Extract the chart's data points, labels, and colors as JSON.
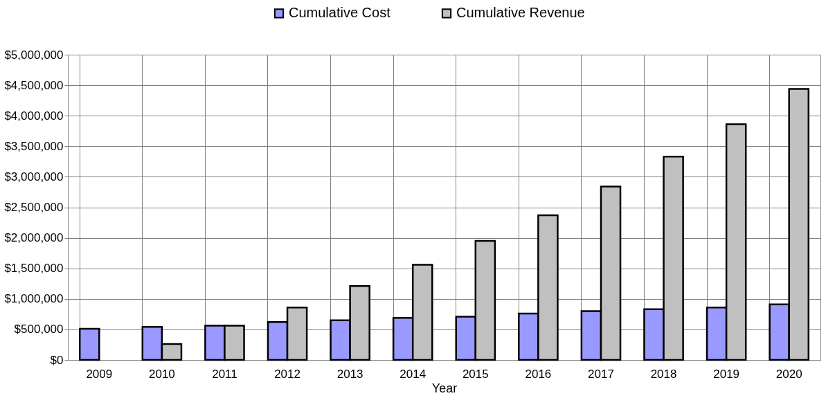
{
  "chart_data": {
    "type": "bar",
    "xlabel": "Year",
    "categories": [
      "2009",
      "2010",
      "2011",
      "2012",
      "2013",
      "2014",
      "2015",
      "2016",
      "2017",
      "2018",
      "2019",
      "2020"
    ],
    "series": [
      {
        "name": "Cumulative Cost",
        "color": "#9999ff",
        "values": [
          510000,
          540000,
          560000,
          620000,
          650000,
          690000,
          710000,
          760000,
          800000,
          830000,
          860000,
          910000
        ]
      },
      {
        "name": "Cumulative Revenue",
        "color": "#c0c0c0",
        "values": [
          null,
          260000,
          560000,
          860000,
          1210000,
          1560000,
          1950000,
          2370000,
          2840000,
          3330000,
          3860000,
          4440000
        ]
      }
    ],
    "ylim": [
      0,
      5000000
    ],
    "yticks": [
      {
        "value": 0,
        "label": "$0"
      },
      {
        "value": 500000,
        "label": "$500,000"
      },
      {
        "value": 1000000,
        "label": "$1,000,000"
      },
      {
        "value": 1500000,
        "label": "$1,500,000"
      },
      {
        "value": 2000000,
        "label": "$2,000,000"
      },
      {
        "value": 2500000,
        "label": "$2,500,000"
      },
      {
        "value": 3000000,
        "label": "$3,000,000"
      },
      {
        "value": 3500000,
        "label": "$3,500,000"
      },
      {
        "value": 4000000,
        "label": "$4,000,000"
      },
      {
        "value": 4500000,
        "label": "$4,500,000"
      },
      {
        "value": 5000000,
        "label": "$5,000,000"
      }
    ],
    "grid": true,
    "legend": "top"
  }
}
